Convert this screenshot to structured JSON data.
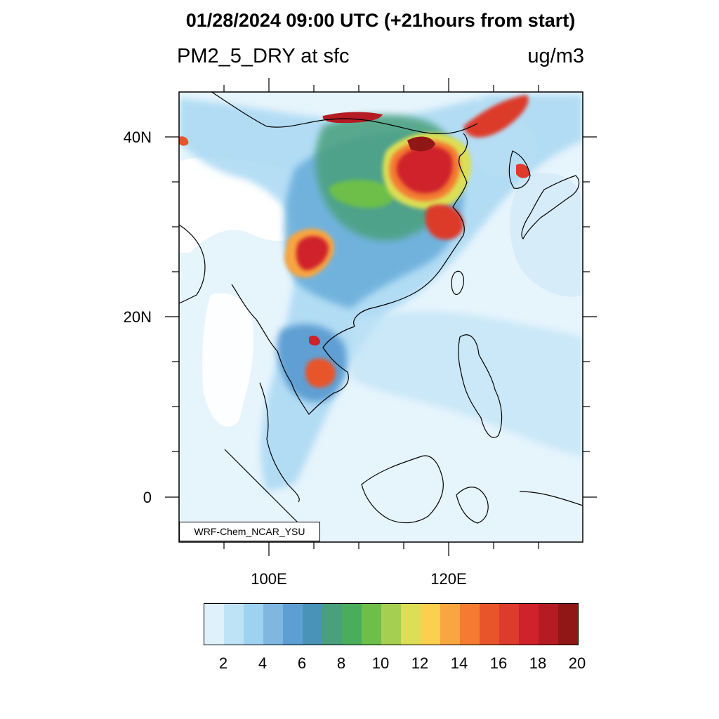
{
  "header": {
    "title": "01/28/2024 09:00 UTC (+21hours from start)",
    "variable": "PM2_5_DRY at sfc",
    "units": "ug/m3"
  },
  "map": {
    "lat_range": [
      -5,
      45
    ],
    "lon_range": [
      90,
      135
    ],
    "lat_labels": [
      "40N",
      "20N",
      "0"
    ],
    "lon_labels": [
      "100E",
      "120E"
    ],
    "model_tag": "WRF-Chem_NCAR_YSU"
  },
  "colorbar": {
    "colors": [
      "#dff1fb",
      "#bfe3f6",
      "#9dd3f1",
      "#7fb7e0",
      "#5e9fd3",
      "#4a93b8",
      "#4aa07c",
      "#49ad5c",
      "#6dbf4a",
      "#a5cf50",
      "#dcdf55",
      "#fbd04f",
      "#f7a640",
      "#f47b30",
      "#e9552b",
      "#dd3b2c",
      "#cf222a",
      "#b51b22",
      "#911616"
    ],
    "tick_labels": [
      "2",
      "4",
      "6",
      "8",
      "10",
      "12",
      "14",
      "16",
      "18",
      "20"
    ]
  }
}
